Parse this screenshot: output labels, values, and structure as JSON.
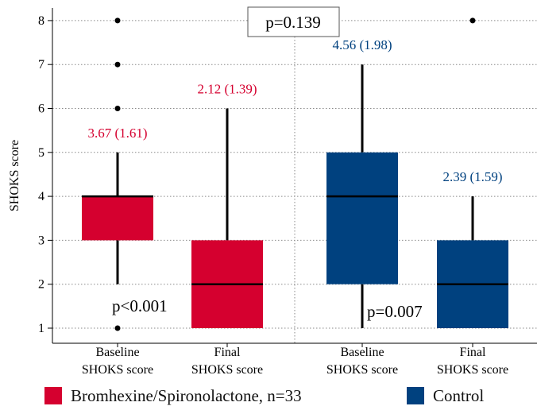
{
  "chart_data": {
    "type": "box",
    "ylabel": "SHOKS score",
    "ylim": [
      0.8,
      8.3
    ],
    "yticks": [
      1,
      2,
      3,
      4,
      5,
      6,
      7,
      8
    ],
    "grid": true,
    "legend_position": "bottom",
    "categories": [
      "Baseline\nSHOKS score",
      "Final\nSHOKS score",
      "Baseline\nSHOKS score",
      "Final\nSHOKS score"
    ],
    "boxes": [
      {
        "group": "Bromhexine/Spironolactone, n=33",
        "category": "Baseline SHOKS score",
        "min": 2,
        "q1": 3,
        "median": 4,
        "q3": 4,
        "max": 5,
        "outliers": [
          1,
          6,
          7,
          8
        ],
        "label": "3.67 (1.61)"
      },
      {
        "group": "Bromhexine/Spironolactone, n=33",
        "category": "Final SHOKS score",
        "min": 1,
        "q1": 1,
        "median": 2,
        "q3": 3,
        "max": 6,
        "outliers": [],
        "label": "2.12 (1.39)"
      },
      {
        "group": "Control",
        "category": "Baseline SHOKS score",
        "min": 1,
        "q1": 2,
        "median": 4,
        "q3": 5,
        "max": 7,
        "outliers": [],
        "label": "4.56 (1.98)"
      },
      {
        "group": "Control",
        "category": "Final SHOKS score",
        "min": 1,
        "q1": 1,
        "median": 2,
        "q3": 3,
        "max": 4,
        "outliers": [
          8
        ],
        "label": "2.39 (1.59)"
      }
    ],
    "annotations": [
      {
        "text": "p=0.139",
        "boxed": true
      },
      {
        "text": "p<0.001"
      },
      {
        "text": "p=0.007"
      }
    ],
    "legend": [
      {
        "name": "Bromhexine/Spironolactone, n=33",
        "color": "#D5002F"
      },
      {
        "name": "Control",
        "color": "#00417F"
      }
    ]
  }
}
